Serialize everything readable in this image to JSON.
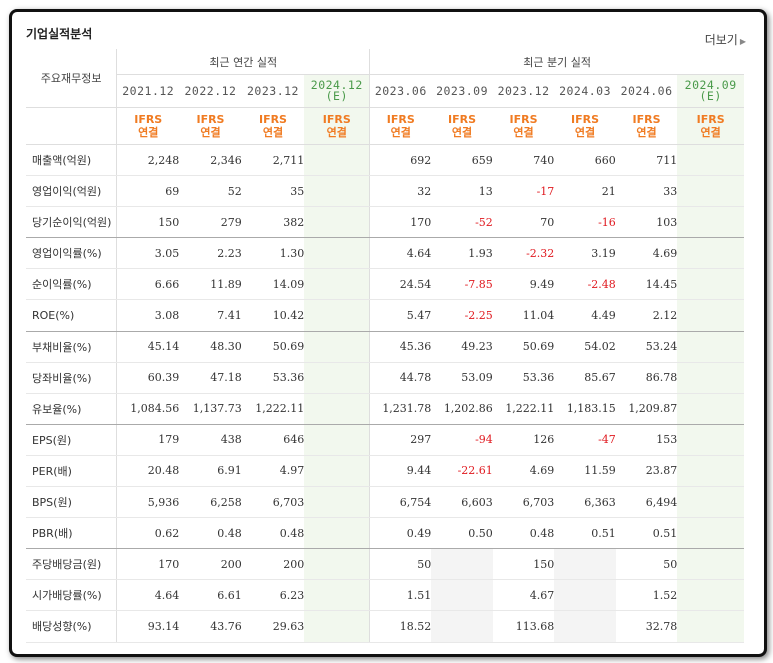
{
  "section_title": "기업실적분석",
  "more_link": "더보기",
  "header": {
    "label_column": "주요재무정보",
    "annual_group": "최근 연간 실적",
    "quarter_group": "최근 분기 실적",
    "annual_periods": [
      "2021.12",
      "2022.12",
      "2023.12"
    ],
    "annual_estimate": {
      "period": "2024.12",
      "flag": "(E)"
    },
    "quarter_periods": [
      "2023.06",
      "2023.09",
      "2023.12",
      "2024.03",
      "2024.06"
    ],
    "quarter_estimate": {
      "period": "2024.09",
      "flag": "(E)"
    },
    "ifrs_top": "IFRS",
    "ifrs_bottom": "연결"
  },
  "colors": {
    "negative": "#e0191f",
    "ifrs": "#f07b22",
    "estimate_bg": "#f2f8ee",
    "estimate_text": "#4a9a4a"
  },
  "rows": [
    {
      "label": "매출액(억원)",
      "annual": [
        "2,248",
        "2,346",
        "2,711",
        ""
      ],
      "quarter": [
        "692",
        "659",
        "740",
        "660",
        "711",
        ""
      ]
    },
    {
      "label": "영업이익(억원)",
      "annual": [
        "69",
        "52",
        "35",
        ""
      ],
      "quarter": [
        "32",
        "13",
        "-17",
        "21",
        "33",
        ""
      ]
    },
    {
      "label": "당기순이익(억원)",
      "annual": [
        "150",
        "279",
        "382",
        ""
      ],
      "quarter": [
        "170",
        "-52",
        "70",
        "-16",
        "103",
        ""
      ]
    },
    {
      "label": "영업이익률(%)",
      "annual": [
        "3.05",
        "2.23",
        "1.30",
        ""
      ],
      "quarter": [
        "4.64",
        "1.93",
        "-2.32",
        "3.19",
        "4.69",
        ""
      ]
    },
    {
      "label": "순이익률(%)",
      "annual": [
        "6.66",
        "11.89",
        "14.09",
        ""
      ],
      "quarter": [
        "24.54",
        "-7.85",
        "9.49",
        "-2.48",
        "14.45",
        ""
      ]
    },
    {
      "label": "ROE(%)",
      "annual": [
        "3.08",
        "7.41",
        "10.42",
        ""
      ],
      "quarter": [
        "5.47",
        "-2.25",
        "11.04",
        "4.49",
        "2.12",
        ""
      ]
    },
    {
      "label": "부채비율(%)",
      "annual": [
        "45.14",
        "48.30",
        "50.69",
        ""
      ],
      "quarter": [
        "45.36",
        "49.23",
        "50.69",
        "54.02",
        "53.24",
        ""
      ]
    },
    {
      "label": "당좌비율(%)",
      "annual": [
        "60.39",
        "47.18",
        "53.36",
        ""
      ],
      "quarter": [
        "44.78",
        "53.09",
        "53.36",
        "85.67",
        "86.78",
        ""
      ]
    },
    {
      "label": "유보율(%)",
      "annual": [
        "1,084.56",
        "1,137.73",
        "1,222.11",
        ""
      ],
      "quarter": [
        "1,231.78",
        "1,202.86",
        "1,222.11",
        "1,183.15",
        "1,209.87",
        ""
      ]
    },
    {
      "label": "EPS(원)",
      "annual": [
        "179",
        "438",
        "646",
        ""
      ],
      "quarter": [
        "297",
        "-94",
        "126",
        "-47",
        "153",
        ""
      ]
    },
    {
      "label": "PER(배)",
      "annual": [
        "20.48",
        "6.91",
        "4.97",
        ""
      ],
      "quarter": [
        "9.44",
        "-22.61",
        "4.69",
        "11.59",
        "23.87",
        ""
      ]
    },
    {
      "label": "BPS(원)",
      "annual": [
        "5,936",
        "6,258",
        "6,703",
        ""
      ],
      "quarter": [
        "6,754",
        "6,603",
        "6,703",
        "6,363",
        "6,494",
        ""
      ]
    },
    {
      "label": "PBR(배)",
      "annual": [
        "0.62",
        "0.48",
        "0.48",
        ""
      ],
      "quarter": [
        "0.49",
        "0.50",
        "0.48",
        "0.51",
        "0.51",
        ""
      ]
    },
    {
      "label": "주당배당금(원)",
      "annual": [
        "170",
        "200",
        "200",
        ""
      ],
      "quarter": [
        "50",
        "",
        "150",
        "",
        "50",
        ""
      ]
    },
    {
      "label": "시가배당률(%)",
      "annual": [
        "4.64",
        "6.61",
        "6.23",
        ""
      ],
      "quarter": [
        "1.51",
        "",
        "4.67",
        "",
        "1.52",
        ""
      ]
    },
    {
      "label": "배당성향(%)",
      "annual": [
        "93.14",
        "43.76",
        "29.63",
        ""
      ],
      "quarter": [
        "18.52",
        "",
        "113.68",
        "",
        "32.78",
        ""
      ]
    }
  ],
  "group_breaks_after": [
    2,
    5,
    8,
    12
  ]
}
